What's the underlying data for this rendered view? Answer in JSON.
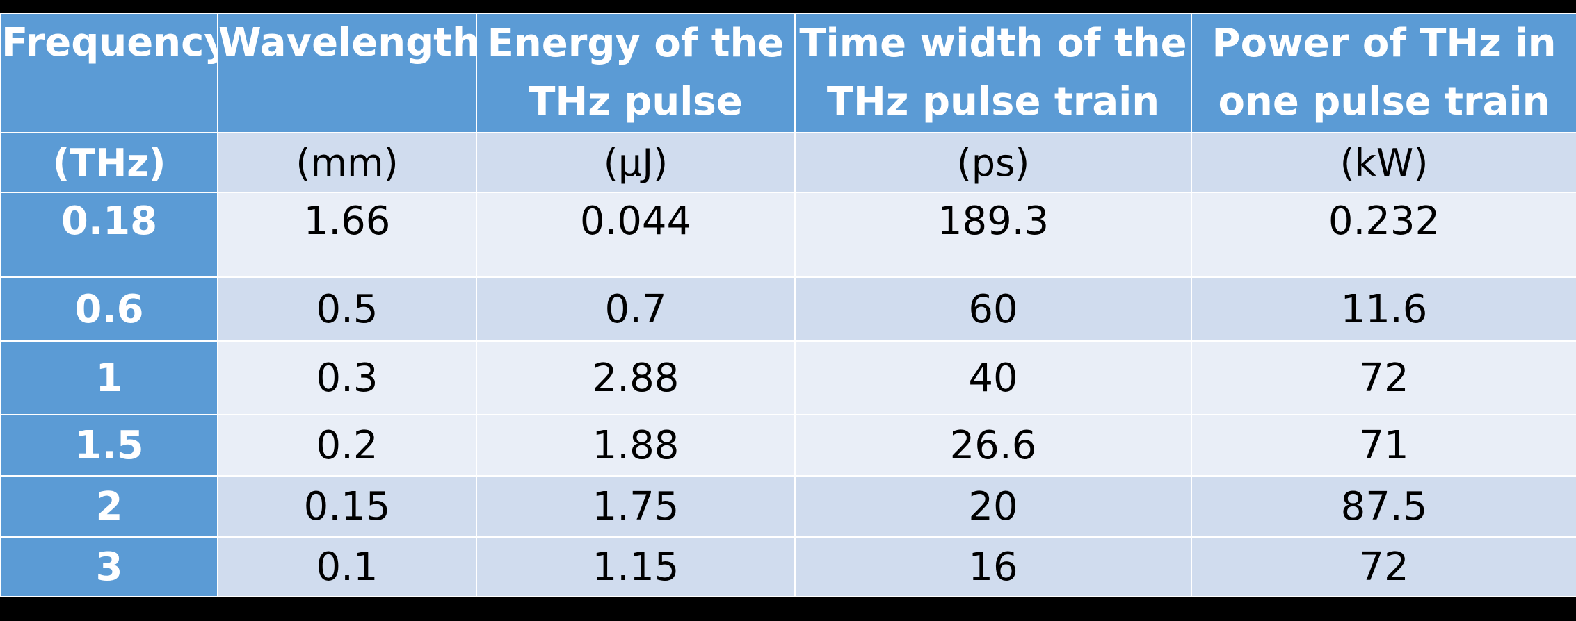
{
  "table": {
    "headers": [
      "Frequency",
      "Wavelength",
      "Energy of the THz pulse",
      "Time width of the THz pulse train",
      "Power of THz in one pulse train"
    ],
    "units": [
      "(THz)",
      "(mm)",
      "(μJ)",
      "(ps)",
      "(kW)"
    ],
    "rows": [
      [
        "0.18",
        "1.66",
        "0.044",
        "189.3",
        "0.232"
      ],
      [
        "0.6",
        "0.5",
        "0.7",
        "60",
        "11.6"
      ],
      [
        "1",
        "0.3",
        "2.88",
        "40",
        "72"
      ],
      [
        "1.5",
        "0.2",
        "1.88",
        "26.6",
        "71"
      ],
      [
        "2",
        "0.15",
        "1.75",
        "20",
        "87.5"
      ],
      [
        "3",
        "0.1",
        "1.15",
        "16",
        "72"
      ]
    ]
  },
  "colors": {
    "header_bg": "#5b9bd5",
    "row_light": "#e9eef7",
    "row_dark": "#d0dcee",
    "background": "#000000"
  }
}
